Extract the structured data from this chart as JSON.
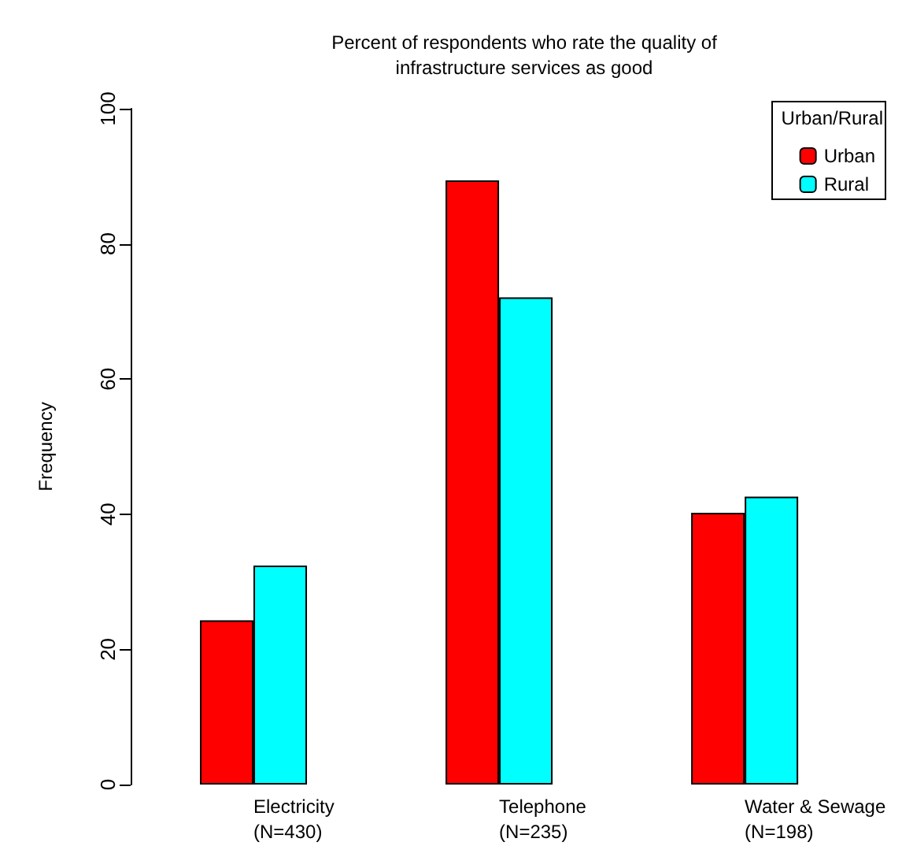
{
  "chart_data": {
    "type": "bar",
    "title": "Percent of respondents who rate the quality of\ninfrastructure services as good",
    "ylabel": "Frequency",
    "legend_title": "Urban/Rural",
    "categories": [
      "Electricity\n(N=430)",
      "Telephone\n(N=235)",
      "Water & Sewage\n(N=198)"
    ],
    "series": [
      {
        "name": "Urban",
        "color": "#ff0000",
        "values": [
          24.3,
          89.4,
          40.2
        ]
      },
      {
        "name": "Rural",
        "color": "#00ffff",
        "values": [
          32.4,
          72.1,
          42.6
        ]
      }
    ],
    "ylim": [
      0,
      100
    ],
    "yticks": [
      0,
      20,
      40,
      60,
      80,
      100
    ],
    "grid": false,
    "legend": "top right"
  }
}
